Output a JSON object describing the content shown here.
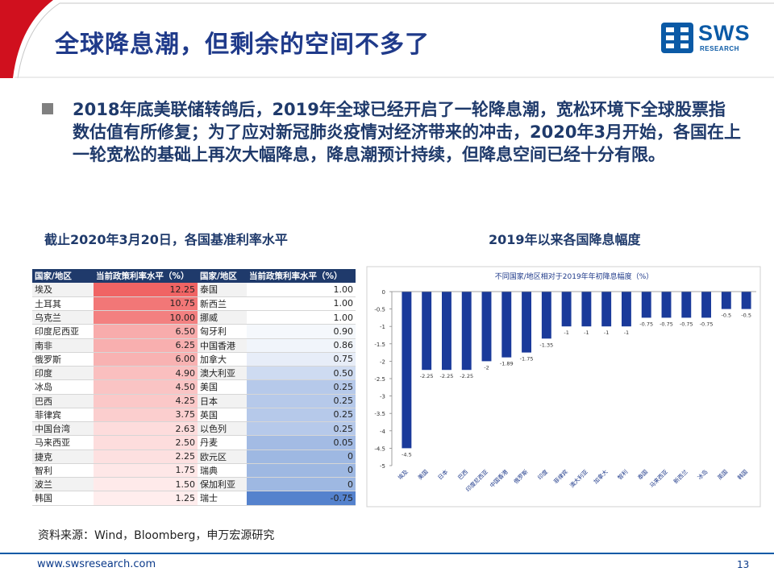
{
  "header": {
    "title": "全球降息潮，但剩余的空间不多了",
    "logo_main": "SWS",
    "logo_sub": "RESEARCH"
  },
  "bullet": {
    "text": "2018年底美联储转鸽后，2019年全球已经开启了一轮降息潮，宽松环境下全球股票指数估值有所修复；为了应对新冠肺炎疫情对经济带来的冲击，2020年3月开始，各国在上一轮宽松的基础上再次大幅降息，降息潮预计持续，但降息空间已经十分有限。"
  },
  "left_section": {
    "title": "截止2020年3月20日，各国基准利率水平",
    "headers": [
      "国家/地区",
      "当前政策利率水平（%）",
      "国家/地区",
      "当前政策利率水平（%）"
    ],
    "rows": [
      {
        "c1": "埃及",
        "v1": "12.25",
        "c2": "泰国",
        "v2": "1.00"
      },
      {
        "c1": "土耳其",
        "v1": "10.75",
        "c2": "新西兰",
        "v2": "1.00"
      },
      {
        "c1": "乌克兰",
        "v1": "10.00",
        "c2": "挪威",
        "v2": "1.00"
      },
      {
        "c1": "印度尼西亚",
        "v1": "6.50",
        "c2": "匈牙利",
        "v2": "0.90"
      },
      {
        "c1": "南非",
        "v1": "6.25",
        "c2": "中国香港",
        "v2": "0.86"
      },
      {
        "c1": "俄罗斯",
        "v1": "6.00",
        "c2": "加拿大",
        "v2": "0.75"
      },
      {
        "c1": "印度",
        "v1": "4.90",
        "c2": "澳大利亚",
        "v2": "0.50"
      },
      {
        "c1": "冰岛",
        "v1": "4.50",
        "c2": "美国",
        "v2": "0.25"
      },
      {
        "c1": "巴西",
        "v1": "4.25",
        "c2": "日本",
        "v2": "0.25"
      },
      {
        "c1": "菲律宾",
        "v1": "3.75",
        "c2": "英国",
        "v2": "0.25"
      },
      {
        "c1": "中国台湾",
        "v1": "2.63",
        "c2": "以色列",
        "v2": "0.25"
      },
      {
        "c1": "马来西亚",
        "v1": "2.50",
        "c2": "丹麦",
        "v2": "0.05"
      },
      {
        "c1": "捷克",
        "v1": "2.25",
        "c2": "欧元区",
        "v2": "0"
      },
      {
        "c1": "智利",
        "v1": "1.75",
        "c2": "瑞典",
        "v2": "0"
      },
      {
        "c1": "波兰",
        "v1": "1.50",
        "c2": "保加利亚",
        "v2": "0"
      },
      {
        "c1": "韩国",
        "v1": "1.25",
        "c2": "瑞士",
        "v2": "-0.75"
      }
    ]
  },
  "right_section": {
    "title": "2019年以来各国降息幅度"
  },
  "chart_data": {
    "type": "bar",
    "title": "不同国家/地区相对于2019年年初降息幅度（%）",
    "categories": [
      "埃及",
      "美国",
      "日本",
      "巴西",
      "印度尼西亚",
      "中国香港",
      "俄罗斯",
      "印度",
      "菲律宾",
      "澳大利亚",
      "加拿大",
      "智利",
      "泰国",
      "马来西亚",
      "新西兰",
      "冰岛",
      "英国",
      "韩国"
    ],
    "values": [
      -4.5,
      -2.25,
      -2.25,
      -2.25,
      -2,
      -1.89,
      -1.75,
      -1.35,
      -1,
      -1,
      -1,
      -1,
      -0.75,
      -0.75,
      -0.75,
      -0.75,
      -0.5,
      -0.5
    ],
    "ylim": [
      -5,
      0
    ],
    "yticks": [
      "0",
      "-0.5",
      "-1",
      "-1.5",
      "-2",
      "-2.5",
      "-3",
      "-3.5",
      "-4",
      "-4.5",
      "-5"
    ],
    "bar_color": "#1a3a9a",
    "xlabel": "",
    "ylabel": ""
  },
  "footer": {
    "source": "资料来源：Wind，Bloomberg，申万宏源研究",
    "url": "www.swsresearch.com",
    "page": "13"
  }
}
